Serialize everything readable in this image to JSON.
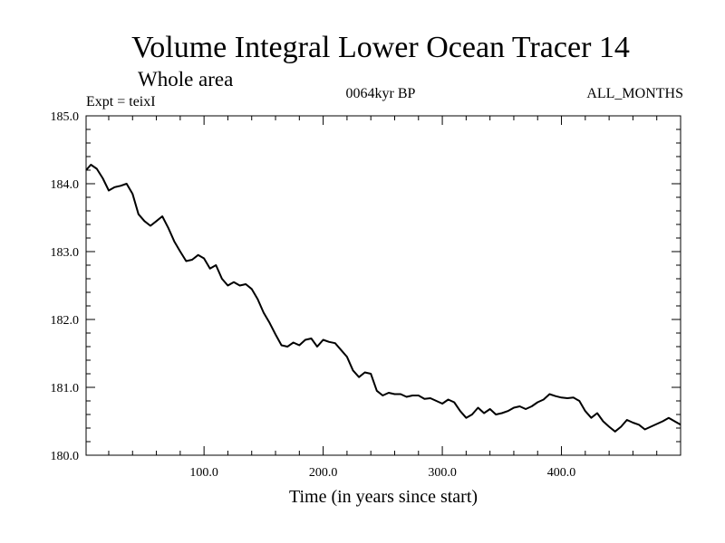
{
  "chart_data": {
    "type": "line",
    "title": "Volume Integral Lower Ocean Tracer 14",
    "subtitle": "Whole area",
    "left_note": "Expt = teixI",
    "center_note": "0064kyr BP",
    "right_note": "ALL_MONTHS",
    "xlabel": "Time (in years since start)",
    "ylabel": "",
    "xlim": [
      1,
      500
    ],
    "ylim": [
      180.0,
      185.0
    ],
    "x_ticks": [
      100,
      200,
      300,
      400
    ],
    "x_tick_labels": [
      "100.0",
      "200.0",
      "300.0",
      "400.0"
    ],
    "y_ticks": [
      180,
      181,
      182,
      183,
      184,
      185
    ],
    "y_tick_labels": [
      "180.0",
      "181.0",
      "182.0",
      "183.0",
      "184.0",
      "185.0"
    ],
    "grid": false,
    "line_color": "#000000",
    "series": [
      {
        "x": [
          1,
          5,
          10,
          15,
          20,
          25,
          30,
          35,
          40,
          45,
          50,
          55,
          60,
          65,
          70,
          75,
          80,
          85,
          90,
          95,
          100,
          105,
          110,
          115,
          120,
          125,
          130,
          135,
          140,
          145,
          150,
          155,
          160,
          165,
          170,
          175,
          180,
          185,
          190,
          195,
          200,
          205,
          210,
          215,
          220,
          225,
          230,
          235,
          240,
          245,
          250,
          255,
          260,
          265,
          270,
          275,
          280,
          285,
          290,
          295,
          300,
          305,
          310,
          315,
          320,
          325,
          330,
          335,
          340,
          345,
          350,
          355,
          360,
          365,
          370,
          375,
          380,
          385,
          390,
          395,
          400,
          405,
          410,
          415,
          420,
          425,
          430,
          435,
          440,
          445,
          450,
          455,
          460,
          465,
          470,
          475,
          480,
          485,
          490,
          495,
          500
        ],
        "values": [
          184.2,
          184.28,
          184.22,
          184.08,
          183.9,
          183.95,
          183.97,
          184.0,
          183.85,
          183.55,
          183.45,
          183.38,
          183.45,
          183.52,
          183.35,
          183.15,
          183.0,
          182.86,
          182.88,
          182.95,
          182.9,
          182.75,
          182.8,
          182.6,
          182.5,
          182.55,
          182.5,
          182.52,
          182.45,
          182.3,
          182.1,
          181.95,
          181.78,
          181.62,
          181.6,
          181.66,
          181.62,
          181.7,
          181.72,
          181.6,
          181.7,
          181.67,
          181.65,
          181.55,
          181.45,
          181.25,
          181.15,
          181.22,
          181.2,
          180.95,
          180.88,
          180.92,
          180.9,
          180.9,
          180.86,
          180.88,
          180.88,
          180.83,
          180.84,
          180.8,
          180.76,
          180.82,
          180.78,
          180.65,
          180.55,
          180.6,
          180.7,
          180.62,
          180.68,
          180.6,
          180.62,
          180.65,
          180.7,
          180.72,
          180.68,
          180.72,
          180.78,
          180.82,
          180.9,
          180.87,
          180.85,
          180.84,
          180.85,
          180.8,
          180.65,
          180.55,
          180.62,
          180.5,
          180.42,
          180.35,
          180.42,
          180.52,
          180.48,
          180.45,
          180.38,
          180.42,
          180.46,
          180.5,
          180.55,
          180.5,
          180.45
        ]
      }
    ]
  }
}
